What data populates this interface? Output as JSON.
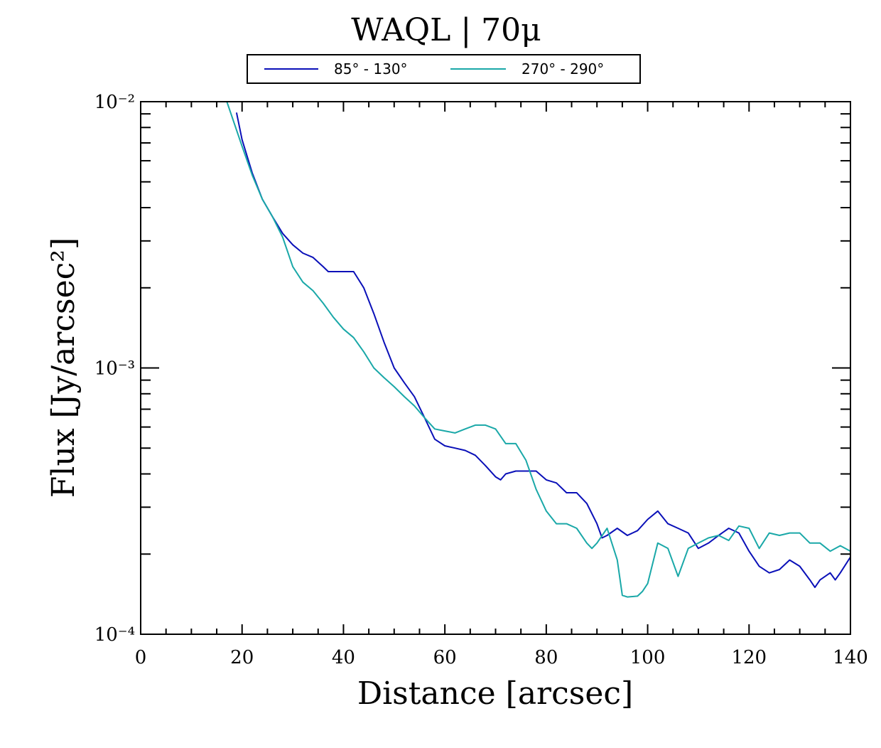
{
  "chart_data": {
    "type": "line",
    "title": "WAQL | 70μ",
    "xlabel": "Distance [arcsec]",
    "ylabel": "Flux [Jy/arcsec²]",
    "xlim": [
      0,
      140
    ],
    "ylim": [
      0.0001,
      0.01
    ],
    "yscale": "log",
    "x_ticks": [
      0,
      20,
      40,
      60,
      80,
      100,
      120,
      140
    ],
    "x_tick_labels": [
      "0",
      "20",
      "40",
      "60",
      "80",
      "100",
      "120",
      "140"
    ],
    "y_ticks": [
      0.0001,
      0.001,
      0.01
    ],
    "y_tick_labels": [
      "10⁻⁴",
      "10⁻³",
      "10⁻²"
    ],
    "legend_position": "top-center",
    "grid": false,
    "series": [
      {
        "name": "85° - 130°",
        "color": "#0a10b8",
        "x": [
          18.9,
          20,
          22,
          24,
          26,
          28,
          30,
          32,
          34,
          36,
          37,
          38,
          40,
          42,
          44,
          46,
          48,
          50,
          52,
          54,
          56,
          58,
          60,
          62,
          64,
          66,
          68,
          70,
          71,
          72,
          74,
          76,
          78,
          80,
          82,
          84,
          86,
          88,
          90,
          91,
          92,
          94,
          96,
          98,
          100,
          102,
          104,
          106,
          108,
          110,
          112,
          114,
          116,
          118,
          120,
          122,
          124,
          126,
          128,
          130,
          132,
          133,
          134,
          136,
          137,
          138,
          140
        ],
        "y": [
          0.0091,
          0.0072,
          0.0054,
          0.0043,
          0.0037,
          0.0032,
          0.0029,
          0.0027,
          0.0026,
          0.0024,
          0.0023,
          0.0023,
          0.0023,
          0.0023,
          0.002,
          0.0016,
          0.00125,
          0.001,
          0.00088,
          0.00078,
          0.00065,
          0.00054,
          0.00051,
          0.0005,
          0.00049,
          0.00047,
          0.00043,
          0.00039,
          0.00038,
          0.0004,
          0.00041,
          0.00041,
          0.00041,
          0.00038,
          0.00037,
          0.00034,
          0.00034,
          0.00031,
          0.00026,
          0.00023,
          0.000235,
          0.00025,
          0.000235,
          0.000245,
          0.00027,
          0.00029,
          0.00026,
          0.00025,
          0.00024,
          0.00021,
          0.00022,
          0.000235,
          0.00025,
          0.00024,
          0.000205,
          0.00018,
          0.00017,
          0.000175,
          0.00019,
          0.00018,
          0.00016,
          0.00015,
          0.00016,
          0.00017,
          0.00016,
          0.00017,
          0.000195
        ]
      },
      {
        "name": "270° - 290°",
        "color": "#1aa8a8",
        "x": [
          17,
          18,
          20,
          22,
          24,
          26,
          28,
          30,
          32,
          34,
          36,
          38,
          40,
          42,
          44,
          46,
          48,
          50,
          52,
          54,
          56,
          58,
          60,
          62,
          64,
          66,
          68,
          70,
          72,
          74,
          76,
          78,
          80,
          82,
          84,
          86,
          88,
          89,
          90,
          92,
          94,
          95,
          96,
          98,
          99,
          100,
          102,
          104,
          106,
          108,
          110,
          112,
          114,
          116,
          118,
          120,
          122,
          124,
          126,
          128,
          130,
          132,
          134,
          136,
          138,
          140
        ],
        "y": [
          0.01,
          0.0088,
          0.0068,
          0.0053,
          0.0043,
          0.0037,
          0.0031,
          0.0024,
          0.0021,
          0.00195,
          0.00175,
          0.00155,
          0.0014,
          0.0013,
          0.00115,
          0.001,
          0.00092,
          0.00085,
          0.00078,
          0.00072,
          0.00065,
          0.00059,
          0.00058,
          0.00057,
          0.00059,
          0.00061,
          0.00061,
          0.00059,
          0.00052,
          0.00052,
          0.00045,
          0.00035,
          0.00029,
          0.00026,
          0.00026,
          0.00025,
          0.00022,
          0.00021,
          0.00022,
          0.00025,
          0.00019,
          0.00014,
          0.000138,
          0.000139,
          0.000145,
          0.000155,
          0.00022,
          0.00021,
          0.000165,
          0.00021,
          0.00022,
          0.00023,
          0.000235,
          0.000225,
          0.000255,
          0.00025,
          0.00021,
          0.00024,
          0.000235,
          0.00024,
          0.00024,
          0.00022,
          0.00022,
          0.000205,
          0.000215,
          0.000205
        ]
      }
    ]
  }
}
